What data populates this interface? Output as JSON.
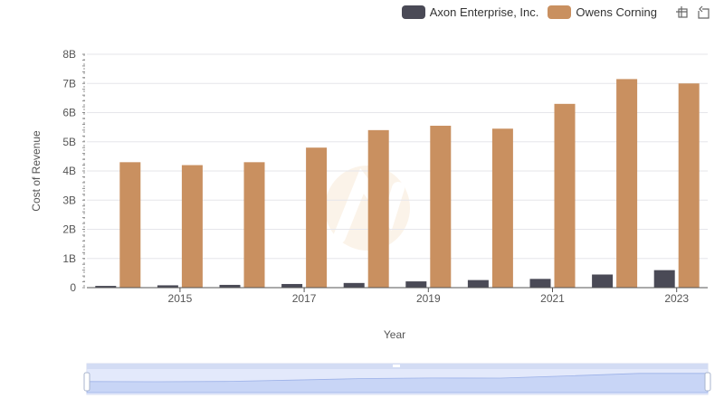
{
  "legend": {
    "series_a_label": "Axon Enterprise, Inc.",
    "series_b_label": "Owens Corning",
    "series_a_color": "#4a4a56",
    "series_b_color": "#c99060"
  },
  "toolbox": {
    "icons": [
      "zoom-icon",
      "restore-icon"
    ]
  },
  "chart_data": {
    "type": "bar",
    "xlabel": "Year",
    "ylabel": "Cost of Revenue",
    "ylim": [
      0,
      8000000000
    ],
    "yticks": [
      "0",
      "1B",
      "2B",
      "3B",
      "4B",
      "5B",
      "6B",
      "7B",
      "8B"
    ],
    "categories": [
      "2014",
      "2015",
      "2016",
      "2017",
      "2018",
      "2019",
      "2020",
      "2021",
      "2022",
      "2023"
    ],
    "xticks_shown": [
      "2015",
      "2017",
      "2019",
      "2021",
      "2023"
    ],
    "series": [
      {
        "name": "Axon Enterprise, Inc.",
        "color": "#4a4a56",
        "values": [
          60000000,
          80000000,
          95000000,
          125000000,
          160000000,
          215000000,
          260000000,
          300000000,
          450000000,
          600000000
        ]
      },
      {
        "name": "Owens Corning",
        "color": "#c99060",
        "values": [
          4300000000,
          4200000000,
          4300000000,
          4800000000,
          5400000000,
          5550000000,
          5450000000,
          6300000000,
          7150000000,
          7000000000
        ]
      }
    ],
    "grid": true,
    "legend_position": "top-right",
    "data_zoom": {
      "start": 0,
      "end": 100
    }
  }
}
